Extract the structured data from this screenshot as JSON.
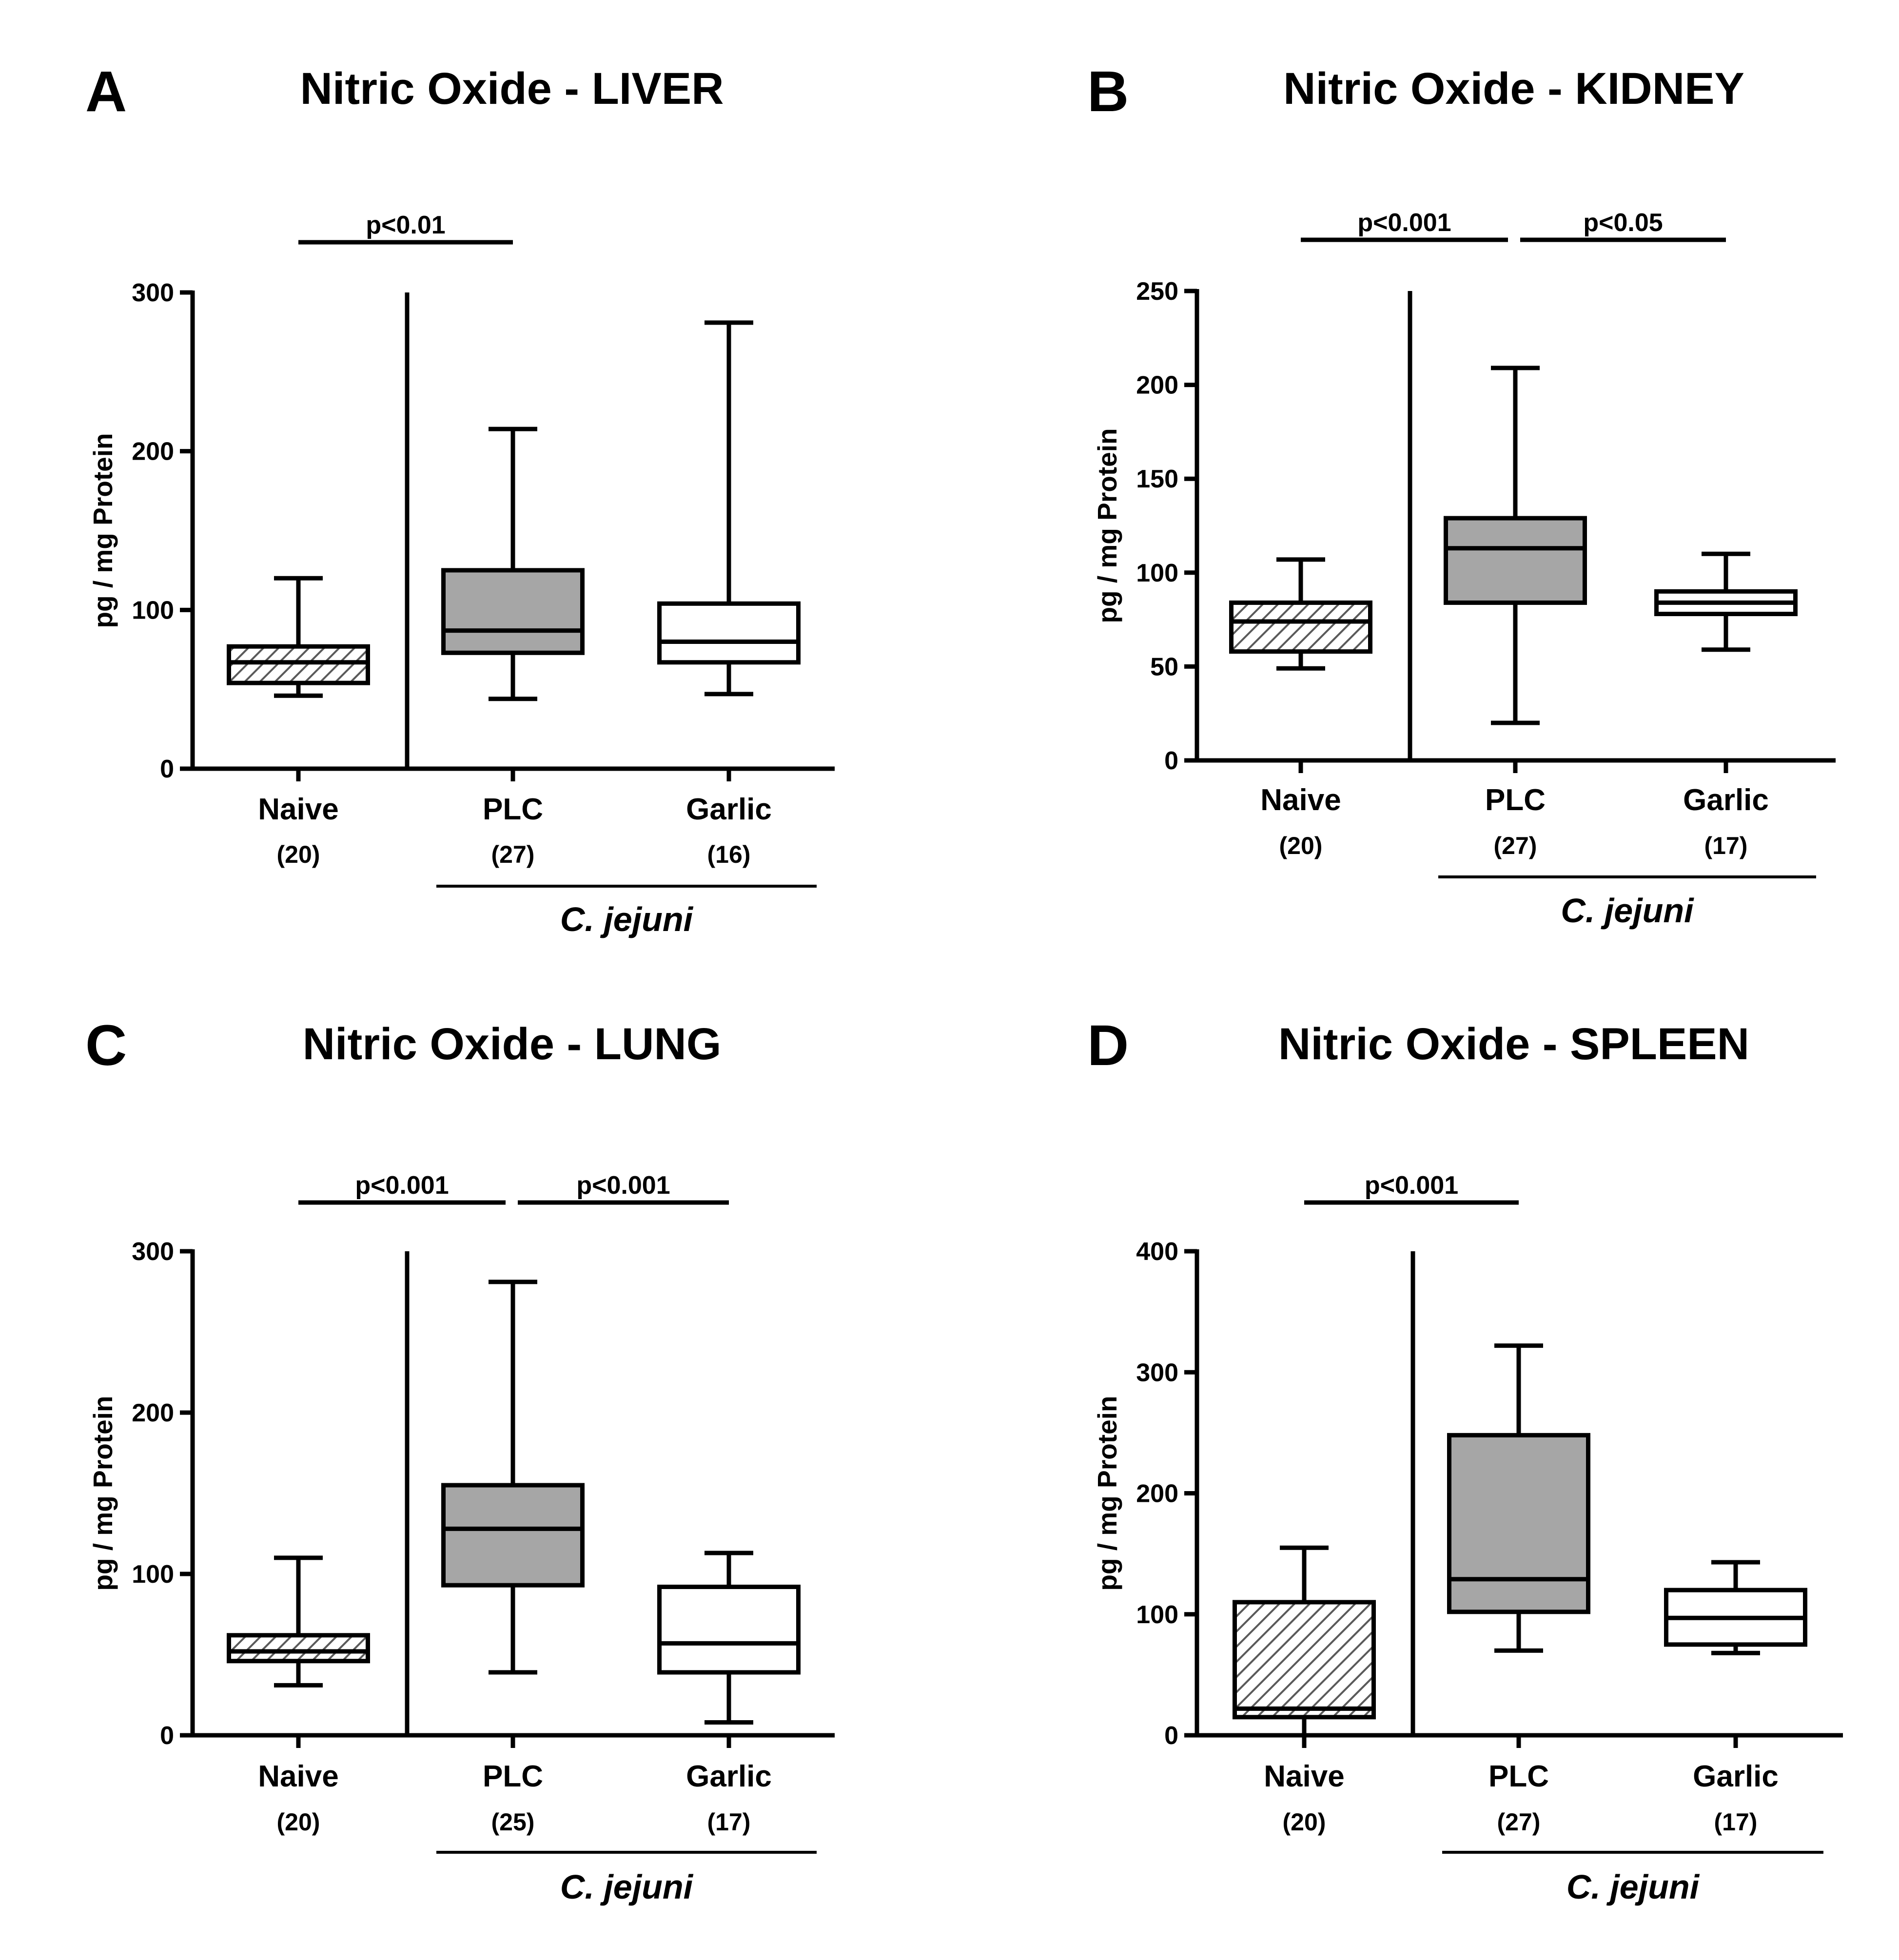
{
  "colors": {
    "ink": "#000000",
    "background": "#ffffff",
    "naive_hatch": "#b3b3b3",
    "plc_fill": "#a6a6a6",
    "garlic_fill": "#ffffff"
  },
  "chart_data": [
    {
      "type": "boxplot",
      "panel": "A",
      "title": "Nitric Oxide - LIVER",
      "ylabel": "pg / mg Protein",
      "ylim": [
        0,
        300
      ],
      "yticks": [
        0,
        100,
        200,
        300
      ],
      "categories": [
        "Naive",
        "PLC",
        "Garlic"
      ],
      "n_labels": [
        "(20)",
        "(27)",
        "(16)"
      ],
      "fills": [
        "hatch",
        "gray",
        "white"
      ],
      "boxes": [
        {
          "min": 46,
          "q1": 54,
          "median": 67,
          "q3": 77,
          "max": 120
        },
        {
          "min": 44,
          "q1": 73,
          "median": 87,
          "q3": 125,
          "max": 214
        },
        {
          "min": 47,
          "q1": 67,
          "median": 80,
          "q3": 104,
          "max": 281
        }
      ],
      "comparisons": [
        {
          "from": 0,
          "to": 1,
          "label": "p<0.01"
        }
      ],
      "bracket_label": "C. jejuni",
      "bracket_groups": [
        1,
        2
      ]
    },
    {
      "type": "boxplot",
      "panel": "B",
      "title": "Nitric Oxide - KIDNEY",
      "ylabel": "pg / mg Protein",
      "ylim": [
        0,
        250
      ],
      "yticks": [
        0,
        50,
        100,
        150,
        200,
        250
      ],
      "categories": [
        "Naive",
        "PLC",
        "Garlic"
      ],
      "n_labels": [
        "(20)",
        "(27)",
        "(17)"
      ],
      "fills": [
        "hatch",
        "gray",
        "white"
      ],
      "boxes": [
        {
          "min": 49,
          "q1": 58,
          "median": 74,
          "q3": 84,
          "max": 107
        },
        {
          "min": 20,
          "q1": 84,
          "median": 113,
          "q3": 129,
          "max": 209
        },
        {
          "min": 59,
          "q1": 78,
          "median": 84,
          "q3": 90,
          "max": 110
        }
      ],
      "comparisons": [
        {
          "from": 0,
          "to": 1,
          "label": "p<0.001"
        },
        {
          "from": 1,
          "to": 2,
          "label": "p<0.05"
        }
      ],
      "bracket_label": "C. jejuni",
      "bracket_groups": [
        1,
        2
      ]
    },
    {
      "type": "boxplot",
      "panel": "C",
      "title": "Nitric Oxide - LUNG",
      "ylabel": "pg / mg Protein",
      "ylim": [
        0,
        300
      ],
      "yticks": [
        0,
        100,
        200,
        300
      ],
      "categories": [
        "Naive",
        "PLC",
        "Garlic"
      ],
      "n_labels": [
        "(20)",
        "(25)",
        "(17)"
      ],
      "fills": [
        "hatch",
        "gray",
        "white"
      ],
      "boxes": [
        {
          "min": 31,
          "q1": 46,
          "median": 52,
          "q3": 62,
          "max": 110
        },
        {
          "min": 39,
          "q1": 93,
          "median": 128,
          "q3": 155,
          "max": 281
        },
        {
          "min": 8,
          "q1": 39,
          "median": 57,
          "q3": 92,
          "max": 113
        }
      ],
      "comparisons": [
        {
          "from": 0,
          "to": 1,
          "label": "p<0.001"
        },
        {
          "from": 1,
          "to": 2,
          "label": "p<0.001"
        }
      ],
      "bracket_label": "C. jejuni",
      "bracket_groups": [
        1,
        2
      ]
    },
    {
      "type": "boxplot",
      "panel": "D",
      "title": "Nitric Oxide - SPLEEN",
      "ylabel": "pg / mg Protein",
      "ylim": [
        0,
        400
      ],
      "yticks": [
        0,
        100,
        200,
        300,
        400
      ],
      "categories": [
        "Naive",
        "PLC",
        "Garlic"
      ],
      "n_labels": [
        "(20)",
        "(27)",
        "(17)"
      ],
      "fills": [
        "hatch",
        "gray",
        "white"
      ],
      "boxes": [
        {
          "min": 0,
          "q1": 15,
          "median": 22,
          "q3": 110,
          "max": 155
        },
        {
          "min": 70,
          "q1": 102,
          "median": 129,
          "q3": 248,
          "max": 322
        },
        {
          "min": 68,
          "q1": 75,
          "median": 97,
          "q3": 120,
          "max": 143
        }
      ],
      "comparisons": [
        {
          "from": 0,
          "to": 1,
          "label": "p<0.001"
        }
      ],
      "bracket_label": "C. jejuni",
      "bracket_groups": [
        1,
        2
      ]
    }
  ]
}
